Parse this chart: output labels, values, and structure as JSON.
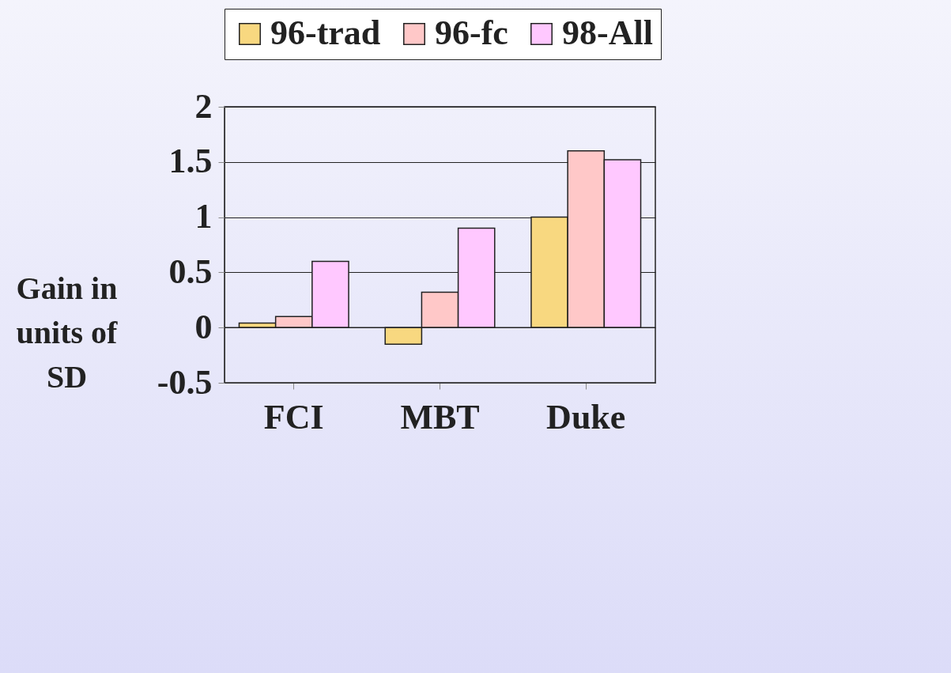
{
  "chart_data": {
    "type": "bar",
    "categories": [
      "FCI",
      "MBT",
      "Duke"
    ],
    "ylabel": "Gain in units of SD",
    "series": [
      {
        "name": "96-trad",
        "color": "#f8d880",
        "values": [
          0.04,
          -0.15,
          1.0
        ]
      },
      {
        "name": "96-fc",
        "color": "#ffc8c8",
        "values": [
          0.1,
          0.32,
          1.6
        ]
      },
      {
        "name": "98-All",
        "color": "#ffc8ff",
        "values": [
          0.6,
          0.9,
          1.52
        ]
      }
    ],
    "ylim": [
      -0.5,
      2
    ],
    "yticks": [
      -0.5,
      0,
      0.5,
      1,
      1.5,
      2
    ],
    "grid": "y",
    "legend": "top"
  }
}
